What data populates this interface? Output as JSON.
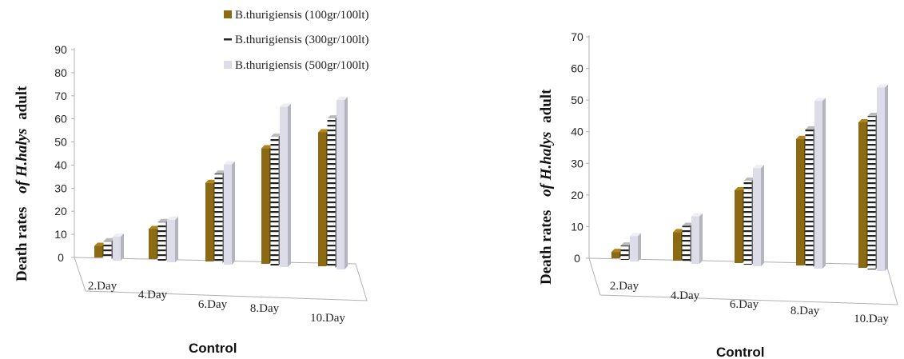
{
  "legend": [
    "B.thurigiensis (100gr/100lt)",
    "B.thurigiensis (300gr/100lt)",
    "B.thurigiensis (500gr/100lt)"
  ],
  "colors": {
    "series1": "#8c6a14",
    "series2_stripe": "#222222",
    "series3": "#dcdde8",
    "axis": "#b0b0b0"
  },
  "chart_data": [
    {
      "type": "bar",
      "categories": [
        "2.Day",
        "4.Day",
        "6.Day",
        "8.Day",
        "10.Day"
      ],
      "ylabel_main": "Death rates",
      "ylabel_italic": "of H.halys",
      "ylabel_end": "adult",
      "xlabel": "Control",
      "ylim": [
        0,
        90
      ],
      "yticks": [
        0,
        10,
        20,
        30,
        40,
        50,
        60,
        70,
        80,
        90
      ],
      "legend_placement": "top-center",
      "series": [
        {
          "name": "B.thurigiensis (100gr/100lt)",
          "values": [
            5,
            13,
            34,
            50,
            58
          ]
        },
        {
          "name": "B.thurigiensis (300gr/100lt)",
          "values": [
            7,
            16,
            38,
            55,
            64
          ]
        },
        {
          "name": "B.thurigiensis (500gr/100lt)",
          "values": [
            9,
            17,
            42,
            68,
            72
          ]
        }
      ]
    },
    {
      "type": "bar",
      "categories": [
        "2.Day",
        "4.Day",
        "6.Day",
        "8.Day",
        "10.Day"
      ],
      "ylabel_main": "Death rates",
      "ylabel_italic": "of H.halys",
      "ylabel_end": "adult",
      "xlabel": "Control",
      "ylim": [
        0,
        70
      ],
      "yticks": [
        0,
        10,
        20,
        30,
        40,
        50,
        60,
        70
      ],
      "series": [
        {
          "name": "B.thurigiensis (100gr/100lt)",
          "values": [
            2,
            9,
            23,
            40,
            46
          ]
        },
        {
          "name": "B.thurigiensis (300gr/100lt)",
          "values": [
            4,
            11,
            26,
            43,
            48
          ]
        },
        {
          "name": "B.thurigiensis (500gr/100lt)",
          "values": [
            7,
            14,
            30,
            52,
            57
          ]
        }
      ]
    }
  ]
}
